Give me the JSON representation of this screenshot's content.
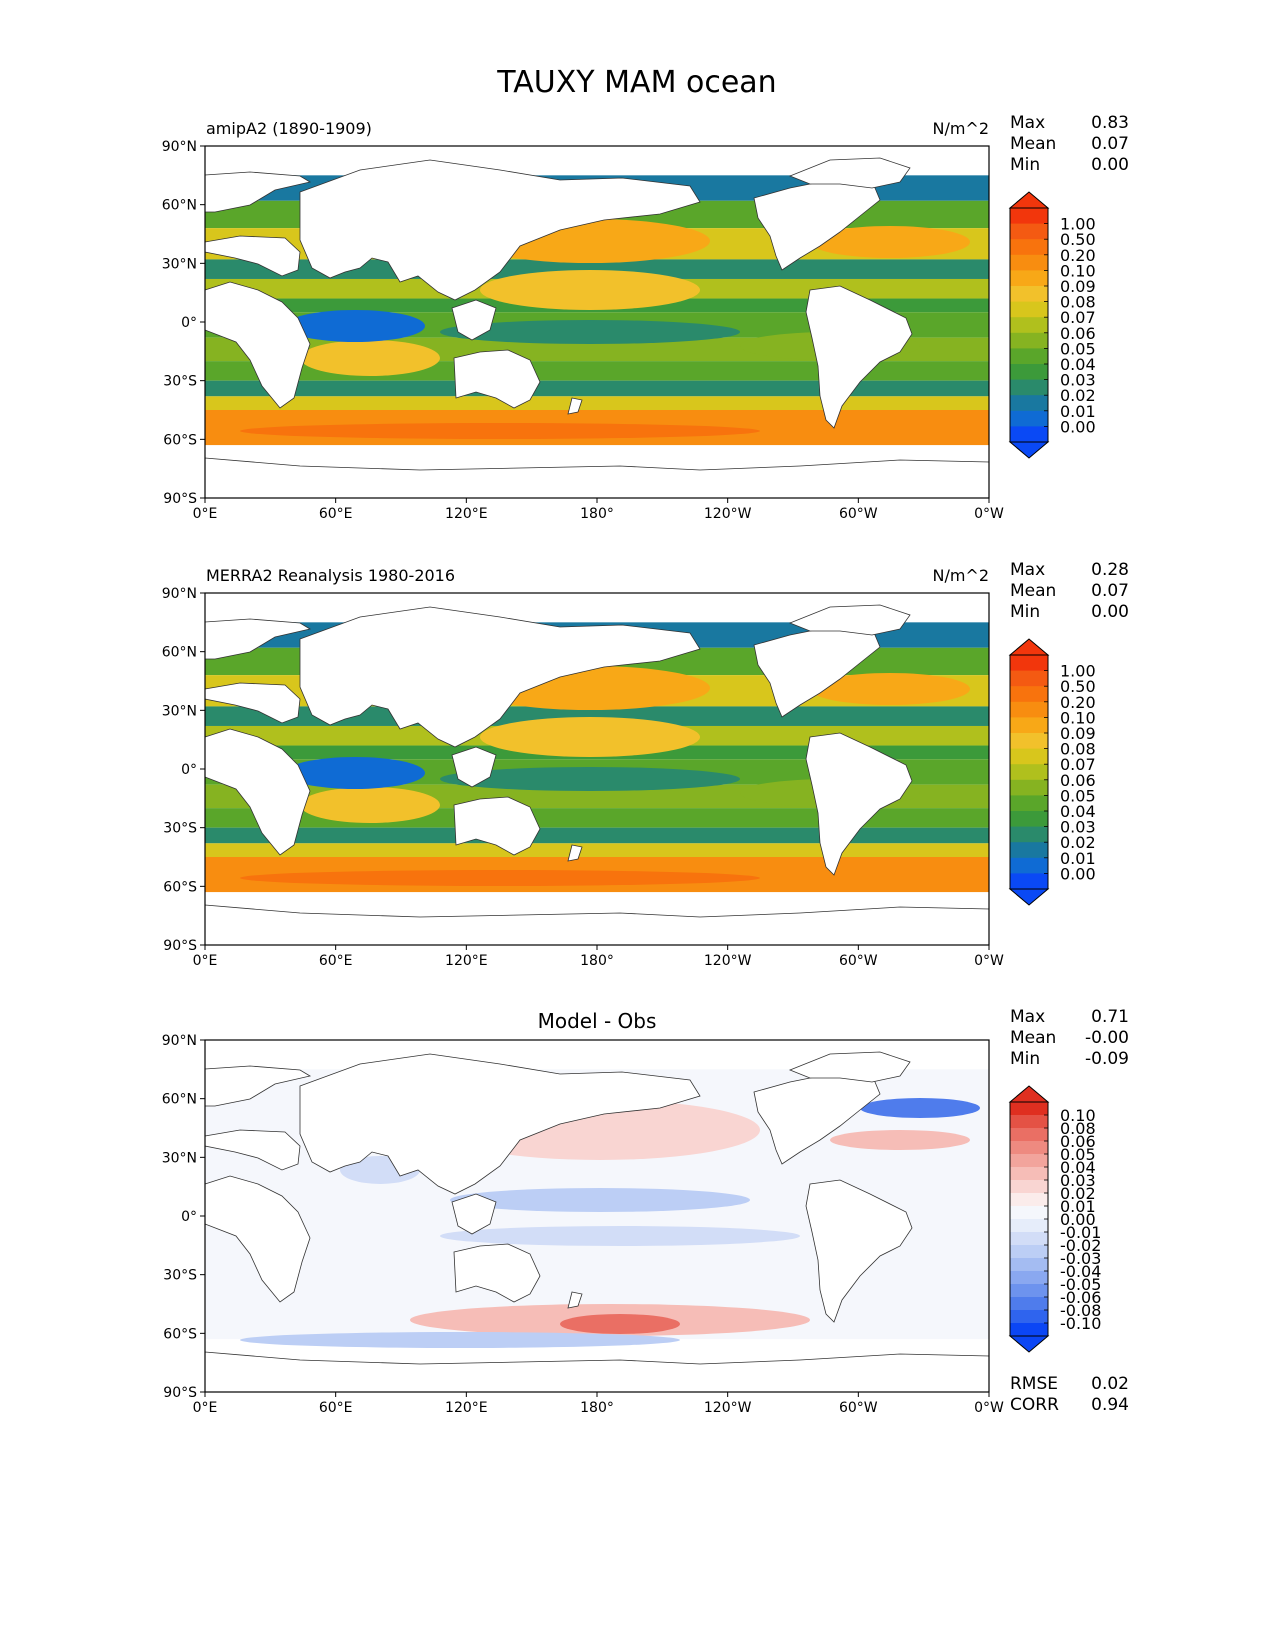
{
  "title": "TAUXY MAM ocean",
  "axes": {
    "lat_ticks": [
      "90°N",
      "60°N",
      "30°N",
      "0°",
      "30°S",
      "60°S",
      "90°S"
    ],
    "lon_ticks": [
      "0°E",
      "60°E",
      "120°E",
      "180°",
      "120°W",
      "60°W",
      "0°W"
    ]
  },
  "colors": {
    "field_levels": [
      "#0a49f5",
      "#0f6bd4",
      "#1978a0",
      "#2a8a6b",
      "#3c9a3a",
      "#5aa62a",
      "#86b321",
      "#b0c01d",
      "#d8c61c",
      "#f2c12b",
      "#f8a817",
      "#f88d10",
      "#f8730d",
      "#f45a12",
      "#f2360c"
    ],
    "diff_levels": [
      "#0b46f5",
      "#2f64ee",
      "#4f7cec",
      "#6d93ee",
      "#8aa8f0",
      "#a4bcf2",
      "#bccef5",
      "#d2ddf7",
      "#e6edfa",
      "#f5f7fc",
      "#fbeceb",
      "#f9d5d2",
      "#f6bdb7",
      "#f2a49c",
      "#ee8a80",
      "#ea6f64",
      "#e45245",
      "#df2f20"
    ],
    "land": "#ffffff",
    "coast": "#333333"
  },
  "chart_data": [
    {
      "type": "heatmap",
      "panel_title": "",
      "left_label": "amipA2 (1890-1909)",
      "right_label": "N/m^2",
      "stats": [
        {
          "label": "Max",
          "value": "0.83"
        },
        {
          "label": "Mean",
          "value": "0.07"
        },
        {
          "label": "Min",
          "value": "0.00"
        }
      ],
      "colorbar_labels": [
        "1.00",
        "0.50",
        "0.20",
        "0.10",
        "0.09",
        "0.08",
        "0.07",
        "0.06",
        "0.05",
        "0.04",
        "0.03",
        "0.02",
        "0.01",
        "0.00"
      ],
      "footer_stats": [],
      "xlim": [
        0,
        360
      ],
      "ylim": [
        -90,
        90
      ]
    },
    {
      "type": "heatmap",
      "panel_title": "",
      "left_label": "MERRA2 Reanalysis 1980-2016",
      "right_label": "N/m^2",
      "stats": [
        {
          "label": "Max",
          "value": "0.28"
        },
        {
          "label": "Mean",
          "value": "0.07"
        },
        {
          "label": "Min",
          "value": "0.00"
        }
      ],
      "colorbar_labels": [
        "1.00",
        "0.50",
        "0.20",
        "0.10",
        "0.09",
        "0.08",
        "0.07",
        "0.06",
        "0.05",
        "0.04",
        "0.03",
        "0.02",
        "0.01",
        "0.00"
      ],
      "footer_stats": [],
      "xlim": [
        0,
        360
      ],
      "ylim": [
        -90,
        90
      ]
    },
    {
      "type": "heatmap",
      "panel_title": "Model - Obs",
      "left_label": "",
      "right_label": "",
      "stats": [
        {
          "label": "Max",
          "value": "0.71"
        },
        {
          "label": "Mean",
          "value": "-0.00"
        },
        {
          "label": "Min",
          "value": "-0.09"
        }
      ],
      "colorbar_labels": [
        "0.10",
        "0.08",
        "0.06",
        "0.05",
        "0.04",
        "0.03",
        "0.02",
        "0.01",
        "0.00",
        "-0.01",
        "-0.02",
        "-0.03",
        "-0.04",
        "-0.05",
        "-0.06",
        "-0.08",
        "-0.10"
      ],
      "footer_stats": [
        {
          "label": "RMSE",
          "value": "0.02"
        },
        {
          "label": "CORR",
          "value": "0.94"
        }
      ],
      "xlim": [
        0,
        360
      ],
      "ylim": [
        -90,
        90
      ]
    }
  ]
}
